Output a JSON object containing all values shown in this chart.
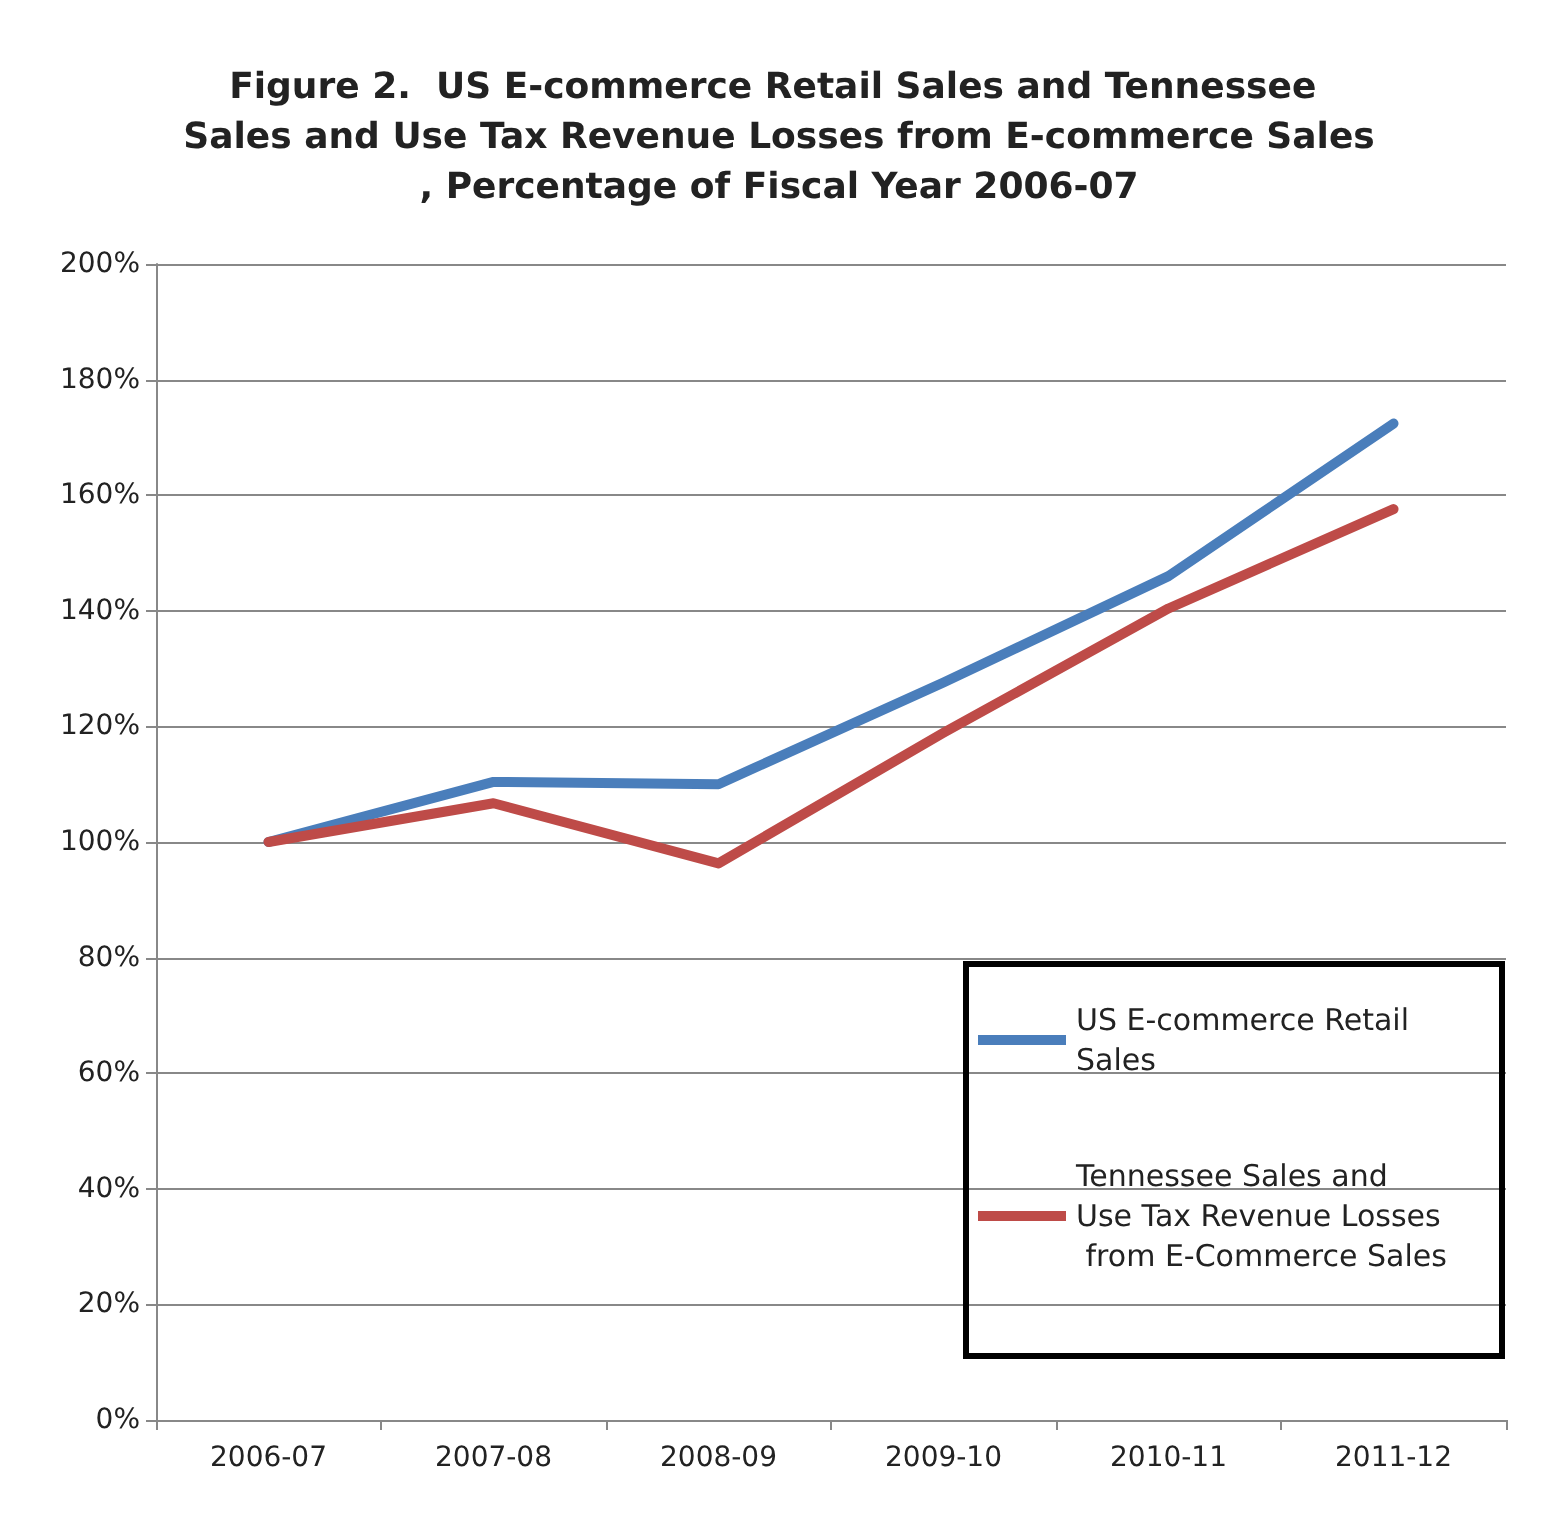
{
  "chart_data": {
    "type": "line",
    "title": "Figure 2.  US E-commerce Retail Sales and Tennessee Sales and Use Tax Revenue Losses from E-commerce Sales, Percentage of Fiscal Year 2006-07",
    "categories": [
      "2006-07",
      "2007-08",
      "2008-09",
      "2009-10",
      "2010-11",
      "2011-12"
    ],
    "series": [
      {
        "name": "US E-commerce Retail Sales",
        "color": "#4a7ebb",
        "values": [
          100,
          110.4,
          110,
          127.6,
          146,
          172.4
        ]
      },
      {
        "name": "Tennessee Sales and Use Tax Revenue Losses from E-Commerce Sales",
        "color": "#be4b48",
        "values": [
          100,
          106.7,
          96.3,
          118.9,
          140.4,
          157.6
        ]
      }
    ],
    "ylim": [
      0,
      200
    ],
    "yticks": [
      {
        "value": 0,
        "label": "0%"
      },
      {
        "value": 20,
        "label": "20%"
      },
      {
        "value": 40,
        "label": "40%"
      },
      {
        "value": 60,
        "label": "60%"
      },
      {
        "value": 80,
        "label": "80%"
      },
      {
        "value": 100,
        "label": "100%"
      },
      {
        "value": 120,
        "label": "120%"
      },
      {
        "value": 140,
        "label": "140%"
      },
      {
        "value": 160,
        "label": "160%"
      },
      {
        "value": 180,
        "label": "180%"
      },
      {
        "value": 200,
        "label": "200%"
      }
    ],
    "grid": "y",
    "legend": "bottom right",
    "marker": "none",
    "line_style": "solid"
  }
}
